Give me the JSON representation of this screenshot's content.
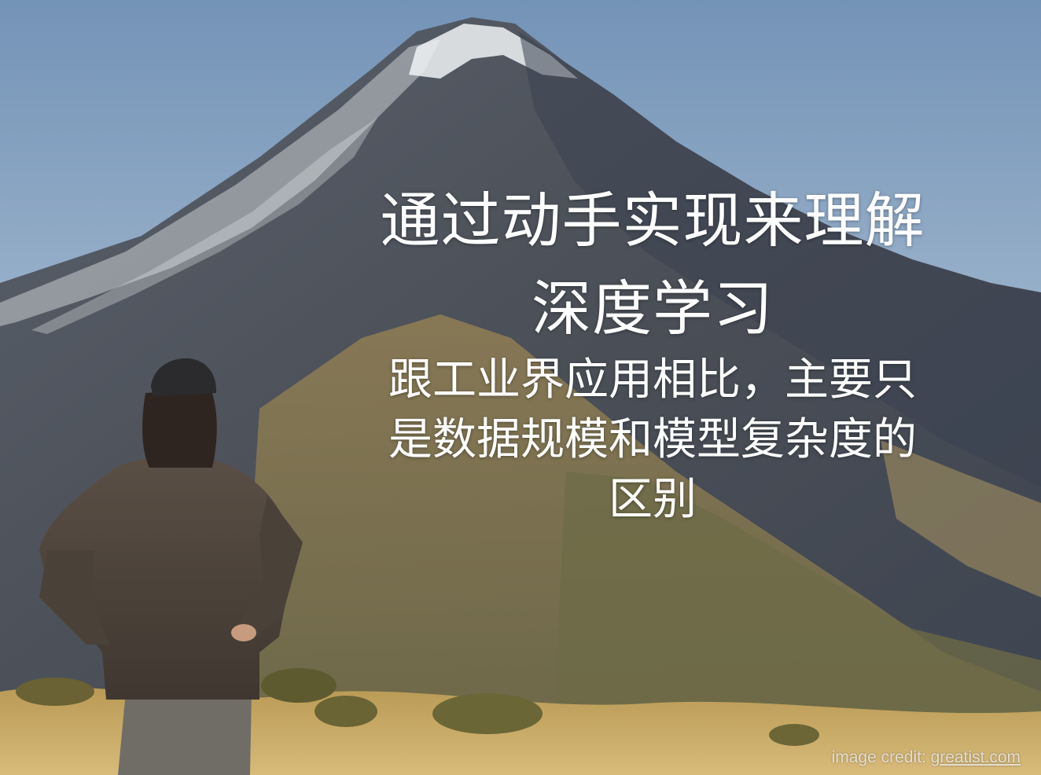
{
  "slide": {
    "title_lines": [
      "通过动手实现来理解",
      "深度学习"
    ],
    "subtitle_lines": [
      "跟工业界应用相比，主要只",
      "是数据规模和模型复杂度的",
      "区别"
    ],
    "credit": {
      "label": "image credit:",
      "source": "greatist.com"
    }
  },
  "colors": {
    "sky_top": "#7f9cbc",
    "sky_bottom": "#a9bfd3",
    "mountain_dark": "#3b4454",
    "mountain_mid": "#5f5a53",
    "snow": "#e8ecef",
    "slope_sunlit": "#9a8a5c",
    "grass": "#c9a860",
    "text": "#ffffff"
  },
  "icons": {
    "background": "mountain-photo"
  }
}
